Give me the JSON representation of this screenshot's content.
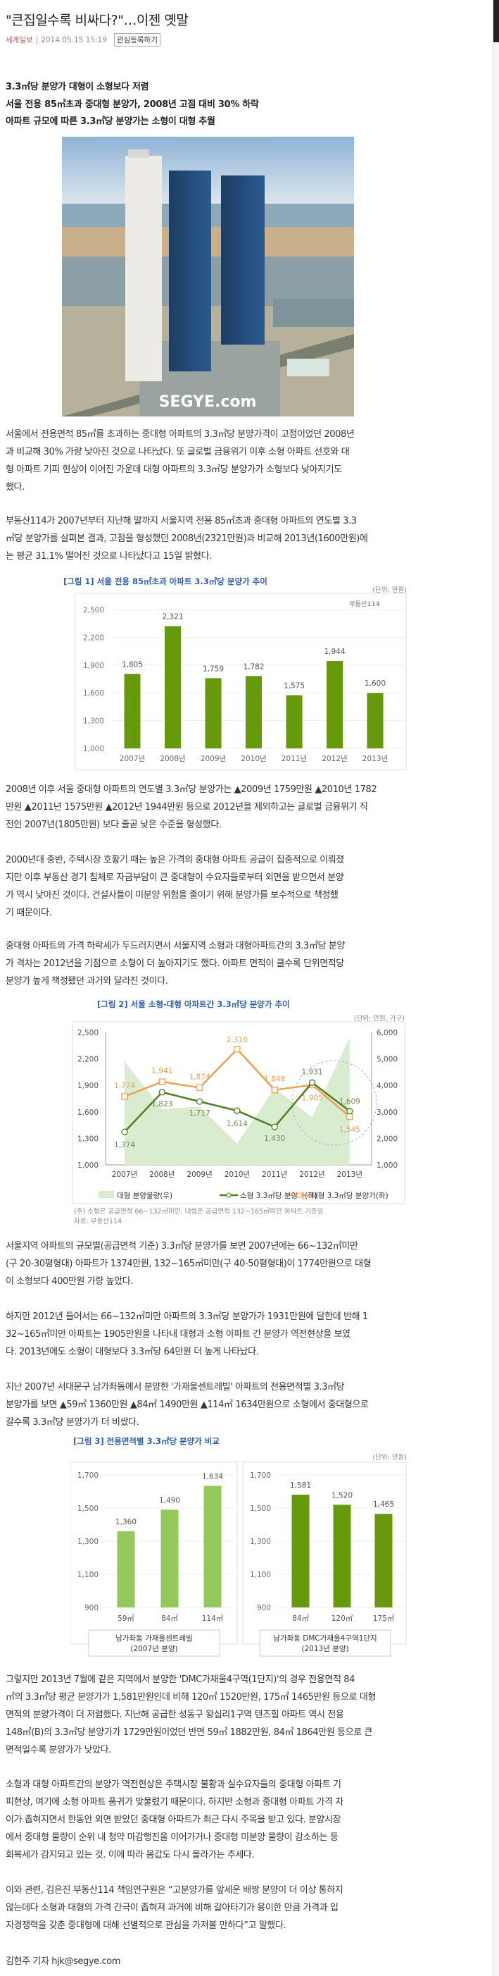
{
  "article": {
    "title": "\"큰집일수록 비싸다?\"…이젠 옛말",
    "source": "세계일보",
    "separator": "|",
    "datetime": "2014.05.15 15:19",
    "bookmark_button": "관심등록하기",
    "subheads": [
      "3.3㎡당 분양가 대형이 소형보다 저렴",
      "서울 전용 85㎡초과 중대형 분양가, 2008년 고점 대비 30% 하락",
      "아파트 규모에 따른 3.3㎡당 분양가는 소형이 대형 추월"
    ],
    "photo_watermark": "SEGYE.com",
    "paragraphs": [
      [
        "서울에서 전용면적 85㎡를 초과하는 중대형 아파트의 3.3㎡당 분양가격이 고점이었던 2008년",
        "과 비교해 30% 가량 낮아진 것으로 나타났다. 또 글로벌 금융위기 이후 소형 아파트 선호와 대",
        "형 아파트 기피 현상이 이어진 가운데 대형 아파트의 3.3㎡당 분양가가 소형보다 낮아지기도",
        "했다."
      ],
      [
        "부동산114가 2007년부터 지난해 말까지 서울지역 전용 85㎡초과 중대형 아파트의 연도별 3.3",
        "㎡당 분양가를 살펴본 결과, 고점을 형성했던 2008년(2321만원)과 비교해 2013년(1600만원)에",
        "는 평균 31.1% 떨어진 것으로 나타났다고 15일 밝혔다."
      ],
      [
        "2008년 이후 서울 중대형 아파트의 연도별 3.3㎡당 분양가는 ▲2009년 1759만원 ▲2010년 1782",
        "만원 ▲2011년 1575만원 ▲2012년 1944만원 등으로 2012년을 제외하고는 글로벌 금융위기 직",
        "전인 2007년(1805만원) 보다 줄곧 낮은 수준을 형성했다."
      ],
      [
        "2000년대 중반, 주택시장 호황기 때는 높은 가격의 중대형 아파트 공급이 집중적으로 이뤄졌",
        "지만 이후 부동산 경기 침체로 자금부담이 큰 중대형이 수요자들로부터 외면을 받으면서 분양",
        "가 역시 낮아진 것이다. 건설사들이 미분양 위험을 줄이기 위해 분양가를 보수적으로 책정했",
        "기 때문이다."
      ],
      [
        "중대형 아파트의 가격 하락세가 두드러지면서 서울지역 소형과 대형아파트간의 3.3㎡당 분양",
        "가 격차는 2012년을 기점으로 소형이 더 높아지기도 했다. 아파트 면적이 클수록 단위면적당",
        "분양가 높게 책정됐던 과거와 달라진 것이다."
      ],
      [
        "서울지역 아파트의 규모별(공급면적 기준) 3.3㎡당 분양가를 보면 2007년에는 66~132㎡미만",
        "(구 20-30평형대) 아파트가 1374만원, 132~165㎡미만(구 40-50평형대)이 1774만원으로 대형",
        "이 소형보다 400만원 가량 높았다."
      ],
      [
        "하지만 2012년 들어서는 66~132㎡미만 아파트의 3.3㎡당 분양가가 1931만원에 달한데 반해 1",
        "32~165㎡미만 아파트는 1905만원을 나타내 대형과 소형 아파트 간 분양가 역전현상을 보였",
        "다. 2013년에도 소형이 대형보다 3.3㎡당 64만원 더 높게 나타났다."
      ],
      [
        "지난 2007년 서대문구 남가좌동에서 분양한 '가재울센트레빌' 아파트의 전용면적별 3.3㎡당",
        "분양가를 보면 ▲59㎡ 1360만원 ▲84㎡ 1490만원 ▲114㎡ 1634만원으로 소형에서 중대형으로",
        "갈수록 3.3㎡당 분양가가 더 비쌌다."
      ],
      [
        "그렇지만 2013년 7월에 같은 지역에서 분양한 'DMC가재울4구역(1단지)'의 경우 전용면적 84",
        "㎡의 3.3㎡당 평균 분양가가 1,581만원인데 비해 120㎡ 1520만원, 175㎡ 1465만원 등으로 대형",
        "면적의 분양가격이 더 저렴했다. 지난해 공급한 성동구 왕십리1구역 텐즈힐 아파트 역시 전용",
        "148㎡(B)의 3.3㎡당 분양가가 1729만원이었던 반면 59㎡ 1882만원, 84㎡ 1864만원 등으로 큰",
        "면적일수록 분양가가 낮았다."
      ],
      [
        "소형과 대형 아파트간의 분양가 역전현상은 주택시장 불황과 실수요자들의 중대형 아파트 기",
        "피현상, 여기에 소형 아파트 품귀가 맞물렸기 때문이다. 하지만 소형과 중대형 아파트 가격 차",
        "이가 좁혀지면서 한동안 외면 받았던 중대형 아파트가 최근 다시 주목을 받고 있다. 분양시장",
        "에서 중대형 물량이 순위 내 청약 마감행진을 이어가거나 중대형 미분양 물량이 감소하는 등",
        "회복세가 감지되고 있는 것. 이에 따라 몸값도 다시 올라가는 추세다."
      ],
      [
        "이와 관련, 김은진 부동산114 책임연구원은 “고분양가를 앞세운 배짱 분양이 더 이상 통하지",
        "않는데다 소형과 대형의 가격 간극이 좁혀져 과거에 비해 갈아타기가 용이한 만큼 가격과 입",
        "지경쟁력을 갖춘 중대형에 대해 선별적으로 관심을 가져볼 만하다”고 말했다."
      ],
      [
        "김현주 기자 hjk@segye.com"
      ]
    ]
  },
  "colors": {
    "bar_dark": "#669a0c",
    "bar_light": "#93c95a",
    "small_line": "#4e7f1c",
    "large_line": "#f0a050",
    "area": "#d9ecd0",
    "chart_title": "#2f5ea8"
  },
  "chart_data": [
    {
      "type": "bar",
      "title": "[그림 1] 서울 전용 85㎡초과 아파트 3.3㎡당 분양가 추이",
      "unit": "(단위: 만원)",
      "logo": "부동산114",
      "categories": [
        "2007년",
        "2008년",
        "2009년",
        "2010년",
        "2011년",
        "2012년",
        "2013년"
      ],
      "values": [
        1805,
        2321,
        1759,
        1782,
        1575,
        1944,
        1600
      ],
      "data_labels": [
        "1,805",
        "2,321",
        "1,759",
        "1,782",
        "1,575",
        "1,944",
        "1,600"
      ],
      "yticks": [
        "1,000",
        "1,300",
        "1,600",
        "1,900",
        "2,200",
        "2,500"
      ],
      "ylim": [
        1000,
        2500
      ],
      "grid": true
    },
    {
      "type": "line",
      "title": "[그림 2] 서울 소형-대형 아파트간 3.3㎡당 분양가 추이",
      "unit": "(단위: 만원, 가구)",
      "categories": [
        "2007년",
        "2008년",
        "2009년",
        "2010년",
        "2011년",
        "2012년",
        "2013년"
      ],
      "series": [
        {
          "name": "대형 분양물량(우)",
          "kind": "area",
          "axis": "right",
          "values": [
            4900,
            3100,
            3200,
            1800,
            3900,
            2800,
            5800
          ]
        },
        {
          "name": "소형 3.3㎡당 분양가(좌)",
          "kind": "line",
          "marker": "circle",
          "axis": "left",
          "values": [
            1374,
            1823,
            1717,
            1614,
            1430,
            1931,
            1609
          ],
          "labels": [
            "1,374",
            "1,823",
            "1,717",
            "1,614",
            "1,430",
            "1,931",
            "1,609"
          ]
        },
        {
          "name": "대형 3.3㎡당 분양가(좌)",
          "kind": "line",
          "marker": "square",
          "axis": "left",
          "values": [
            1774,
            1941,
            1874,
            2310,
            1848,
            1905,
            1545
          ],
          "labels": [
            "1,774",
            "1,941",
            "1,874",
            "2,310",
            "1,848",
            "1,905",
            "1,545"
          ]
        }
      ],
      "yticks_left": [
        "1,000",
        "1,300",
        "1,600",
        "1,900",
        "2,200",
        "2,500"
      ],
      "ylim_left": [
        1000,
        2500
      ],
      "yticks_right": [
        "1,000",
        "2,000",
        "3,000",
        "4,000",
        "5,000",
        "6,000"
      ],
      "ylim_right": [
        1000,
        6000
      ],
      "legend": "bottom",
      "notes": [
        "(주) 소형은 공급면적 66~132㎡미만, 대형은 공급면적 132~165㎡미만 아파트 기준임",
        "자료: 부동산114"
      ]
    },
    {
      "type": "bar",
      "title": "[그림 3] 전용면적별 3.3㎡당 분양가 비교",
      "unit": "(단위: 만원)",
      "panels": [
        {
          "caption": [
            "남가좌동 가재울센트레빌",
            "(2007년 분양)"
          ],
          "categories": [
            "59㎡",
            "84㎡",
            "114㎡"
          ],
          "values": [
            1360,
            1490,
            1634
          ],
          "data_labels": [
            "1,360",
            "1,490",
            "1,634"
          ]
        },
        {
          "caption": [
            "남가좌동 DMC가재울4구역1단지",
            "(2013년 분양)"
          ],
          "categories": [
            "84㎡",
            "120㎡",
            "175㎡"
          ],
          "values": [
            1581,
            1520,
            1465
          ],
          "data_labels": [
            "1,581",
            "1,520",
            "1,465"
          ]
        }
      ],
      "yticks": [
        "900",
        "1,100",
        "1,300",
        "1,500",
        "1,700"
      ],
      "ylim": [
        900,
        1700
      ],
      "grid": true
    }
  ]
}
